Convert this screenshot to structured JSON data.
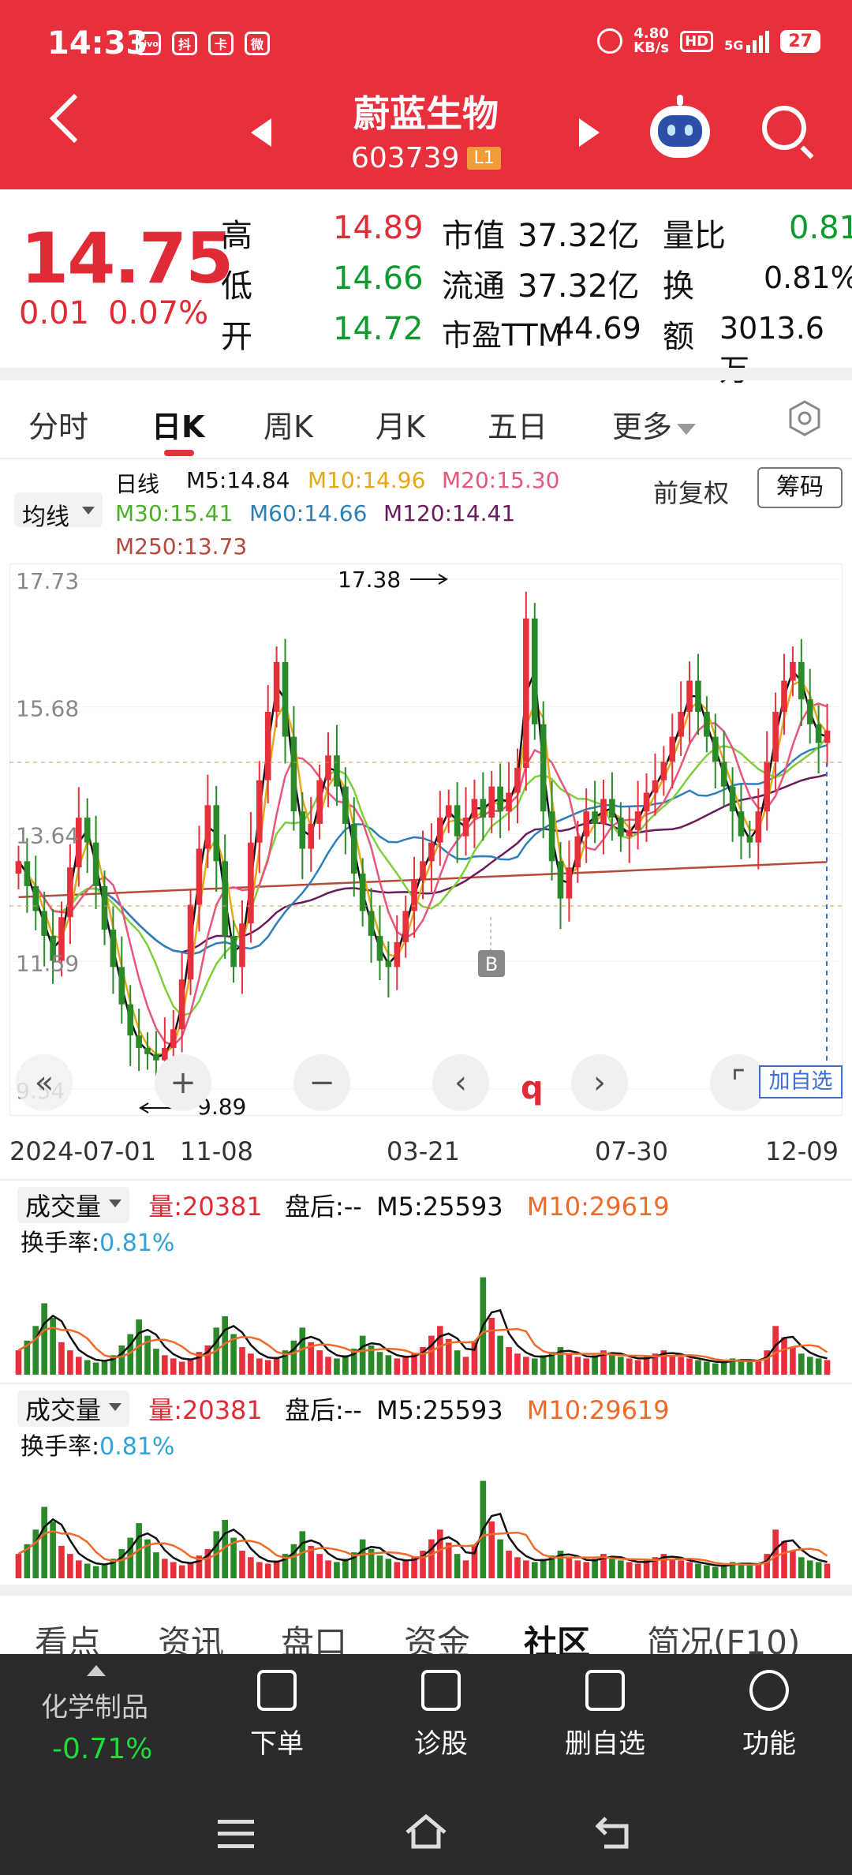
{
  "status_bar": {
    "time": "14:33",
    "speed_value": "4.80",
    "speed_unit": "KB/s",
    "hd": "HD",
    "network": "5G",
    "battery": "27",
    "apps": [
      "vivo",
      "抖",
      "卡",
      "微"
    ]
  },
  "header": {
    "name": "蔚蓝生物",
    "code": "603739",
    "level": "L1"
  },
  "quote": {
    "price": "14.75",
    "change": "0.01",
    "change_pct": "0.07%",
    "high_label": "高",
    "high": "14.89",
    "low_label": "低",
    "low": "14.66",
    "open_label": "开",
    "open": "14.72",
    "mktcap_label": "市值",
    "mktcap": "37.32亿",
    "float_label": "流通",
    "float": "37.32亿",
    "pe_label": "市盈TTM",
    "pe": "44.69",
    "volratio_label": "量比",
    "volratio": "0.81",
    "turnover_label": "换",
    "turnover": "0.81%",
    "amount_label": "额",
    "amount": "3013.6万"
  },
  "tabs": [
    "分时",
    "日K",
    "周K",
    "月K",
    "五日",
    "更多"
  ],
  "legend": {
    "ma_select": "均线",
    "period": "日线",
    "m5": "M5:14.84",
    "m10": "M10:14.96",
    "m20": "M20:15.30",
    "m30": "M30:15.41",
    "m60": "M60:14.66",
    "m120": "M120:14.41",
    "m250": "M250:13.73",
    "adjust": "前复权",
    "chips": "筹码"
  },
  "colors": {
    "m5": "#111111",
    "m10": "#e6a817",
    "m20": "#e8577a",
    "m30": "#7dcf3b",
    "m60": "#2e7fb8",
    "m120": "#6b1a5c",
    "m250": "#b5493b",
    "up": "#e8303c",
    "down": "#2a8a2a"
  },
  "chart_data": {
    "type": "candlestick",
    "y_ticks": [
      "17.73",
      "15.68",
      "13.64",
      "11.59",
      "9.54"
    ],
    "ylim": [
      9.54,
      17.73
    ],
    "high_marker": "17.38",
    "low_marker": "9.89",
    "b_marker": "B",
    "x_labels": [
      "2024-07-01",
      "11-08",
      "03-21",
      "07-30",
      "12-09"
    ],
    "close_series": [
      13.2,
      12.8,
      12.4,
      12.0,
      11.6,
      12.3,
      13.1,
      13.9,
      13.5,
      12.8,
      12.1,
      11.5,
      10.9,
      10.4,
      10.2,
      10.1,
      10.0,
      10.2,
      10.5,
      11.3,
      12.5,
      13.4,
      14.1,
      13.2,
      12.0,
      11.5,
      12.2,
      13.5,
      14.5,
      15.6,
      16.4,
      15.2,
      14.0,
      13.4,
      13.8,
      14.5,
      14.9,
      14.4,
      13.8,
      13.0,
      12.4,
      12.0,
      11.6,
      11.5,
      11.9,
      12.4,
      12.9,
      13.2,
      13.5,
      13.9,
      14.1,
      13.6,
      13.9,
      14.2,
      13.9,
      14.4,
      14.0,
      14.3,
      14.7,
      17.1,
      15.4,
      14.0,
      13.2,
      12.6,
      13.1,
      13.6,
      14.0,
      13.8,
      14.2,
      13.9,
      13.6,
      13.7,
      14.0,
      14.3,
      14.5,
      14.8,
      15.2,
      15.6,
      16.1,
      15.6,
      15.2,
      14.8,
      14.4,
      14.0,
      13.6,
      13.5,
      14.0,
      14.8,
      15.6,
      16.1,
      16.4,
      15.8,
      15.4,
      15.1,
      15.3
    ],
    "volume_values": [
      30,
      42,
      60,
      88,
      70,
      40,
      30,
      22,
      18,
      15,
      18,
      24,
      36,
      50,
      68,
      48,
      32,
      24,
      20,
      16,
      20,
      28,
      36,
      58,
      72,
      50,
      34,
      26,
      20,
      18,
      22,
      30,
      42,
      58,
      40,
      30,
      22,
      20,
      24,
      32,
      48,
      36,
      28,
      24,
      20,
      22,
      26,
      34,
      48,
      60,
      44,
      30,
      22,
      40,
      120,
      70,
      48,
      34,
      26,
      22,
      20,
      24,
      28,
      34,
      26,
      22,
      20,
      24,
      30,
      26,
      22,
      20,
      18,
      22,
      26,
      30,
      24,
      22,
      20,
      18,
      16,
      14,
      16,
      20,
      18,
      16,
      18,
      30,
      60,
      46,
      34,
      26,
      22,
      20,
      18
    ],
    "vol_ylim": [
      0,
      140
    ]
  },
  "volume": {
    "label": "成交量",
    "vol": "量:20381",
    "after": "盘后:--",
    "m5": "M5:25593",
    "m10": "M10:29619",
    "rate_label": "换手率:",
    "rate": "0.81%"
  },
  "controls": {
    "add_watch": "加自选",
    "q_mark": "q"
  },
  "bottom_tabs": [
    "看点",
    "资讯",
    "盘口",
    "资金",
    "社区",
    "简况(F10)"
  ],
  "bottom_bar": {
    "sector": "化学制品",
    "sector_pct": "-0.71%",
    "items": [
      "下单",
      "诊股",
      "删自选",
      "功能"
    ]
  }
}
